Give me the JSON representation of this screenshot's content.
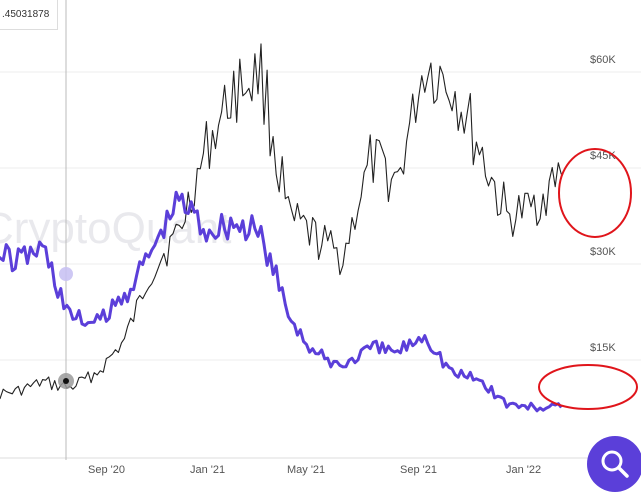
{
  "tooltip": {
    "value": ".45031878"
  },
  "watermark": "CryptoQuant",
  "colors": {
    "price": "#222222",
    "metric": "#5b3fd9",
    "highlight": "#e0151b",
    "grid": "#ececec",
    "crosshair": "#bbbbbb"
  },
  "icons": {
    "search_button": "search-icon"
  },
  "chart_data": {
    "type": "line",
    "title": "",
    "xlabel": "",
    "ylabel": "",
    "x_ticks": [
      "Sep '20",
      "Jan '21",
      "May '21",
      "Sep '21",
      "Jan '22"
    ],
    "y_right_ticks": [
      "$15K",
      "$30K",
      "$45K",
      "$60K"
    ],
    "y_right_range": [
      0,
      65000
    ],
    "grid": true,
    "legend": "none",
    "x": [
      "2020-06",
      "2020-07",
      "2020-08",
      "2020-09",
      "2020-10",
      "2020-11",
      "2020-12",
      "2021-01",
      "2021-02",
      "2021-03",
      "2021-04",
      "2021-05",
      "2021-06",
      "2021-07",
      "2021-08",
      "2021-09",
      "2021-10",
      "2021-11",
      "2021-12",
      "2022-01",
      "2022-02",
      "2022-03"
    ],
    "series": [
      {
        "name": "",
        "axis": "right",
        "values": [
          9500,
          10000,
          11500,
          10600,
          13000,
          18000,
          29000,
          35000,
          48000,
          57000,
          60000,
          37000,
          34000,
          31000,
          46000,
          43000,
          61000,
          58000,
          48000,
          37000,
          39000,
          44000
        ]
      },
      {
        "name": "",
        "axis": "left",
        "values": [
          0.62,
          0.59,
          0.63,
          0.43,
          0.41,
          0.49,
          0.62,
          0.77,
          0.68,
          0.7,
          0.66,
          0.44,
          0.32,
          0.29,
          0.34,
          0.33,
          0.38,
          0.27,
          0.25,
          0.18,
          0.17,
          0.17
        ]
      }
    ],
    "annotations": [
      "red-circle-price-end",
      "red-circle-metric-end"
    ]
  }
}
